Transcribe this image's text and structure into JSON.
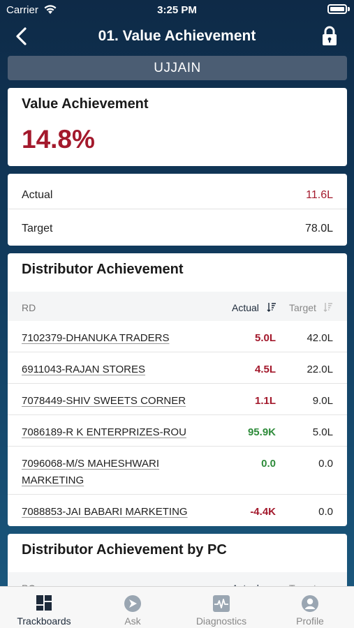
{
  "status_bar": {
    "carrier": "Carrier",
    "time": "3:25 PM"
  },
  "nav": {
    "title": "01. Value Achievement",
    "back_icon": "chevron-left-icon",
    "lock_icon": "lock-icon"
  },
  "region": "UJJAIN",
  "value_achievement": {
    "title": "Value Achievement",
    "value": "14.8%"
  },
  "summary": {
    "actual_label": "Actual",
    "actual_value": "11.6L",
    "target_label": "Target",
    "target_value": "78.0L"
  },
  "distributor_achievement": {
    "title": "Distributor Achievement",
    "columns": {
      "rd": "RD",
      "actual": "Actual",
      "target": "Target"
    },
    "rows": [
      {
        "name": "7102379-DHANUKA TRADERS",
        "actual": "5.0L",
        "target": "42.0L",
        "status": "red"
      },
      {
        "name": "6911043-RAJAN STORES",
        "actual": "4.5L",
        "target": "22.0L",
        "status": "red"
      },
      {
        "name": "7078449-SHIV SWEETS CORNER",
        "actual": "1.1L",
        "target": "9.0L",
        "status": "red"
      },
      {
        "name": "7086189-R K ENTERPRIZES-ROU",
        "actual": "95.9K",
        "target": "5.0L",
        "status": "green"
      },
      {
        "name": "7096068-M/S MAHESHWARI MARKETING",
        "actual": "0.0",
        "target": "0.0",
        "status": "green"
      },
      {
        "name": "7088853-JAI BABARI MARKETING",
        "actual": "-4.4K",
        "target": "0.0",
        "status": "red"
      }
    ]
  },
  "distributor_by_pc": {
    "title": "Distributor Achievement by PC",
    "columns": {
      "rd": "PC",
      "actual": "Actual",
      "target": "Target"
    }
  },
  "tabs": [
    {
      "label": "Trackboards",
      "icon": "trackboards-icon",
      "active": true
    },
    {
      "label": "Ask",
      "icon": "ask-icon",
      "active": false
    },
    {
      "label": "Diagnostics",
      "icon": "diagnostics-icon",
      "active": false
    },
    {
      "label": "Profile",
      "icon": "profile-icon",
      "active": false
    }
  ],
  "colors": {
    "accent_red": "#a3192c",
    "accent_green": "#2e8b3a",
    "header_bg": "#0e2a47",
    "region_bg": "#4b5d73"
  }
}
